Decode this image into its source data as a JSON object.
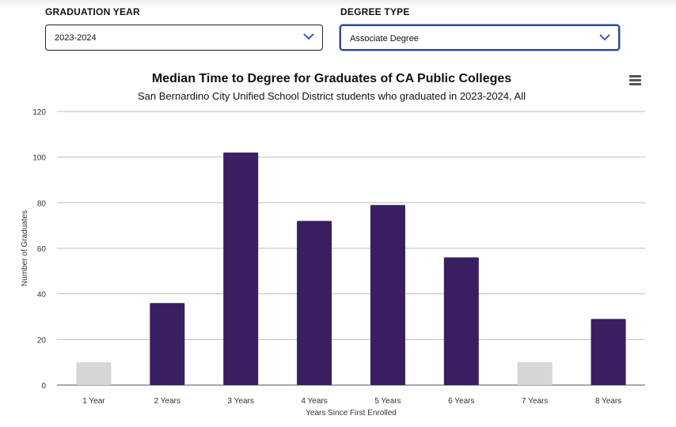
{
  "filters": {
    "year": {
      "label": "GRADUATION YEAR",
      "value": "2023-2024"
    },
    "degree": {
      "label": "DEGREE TYPE",
      "value": "Associate Degree"
    }
  },
  "menu": {
    "icon": "hamburger-menu-icon"
  },
  "colors": {
    "bar": "#3a1e62",
    "bar_suppressed": "#d6d6d6",
    "gridline": "#bfbfbf",
    "accent": "#2f4a8a"
  },
  "chart_data": {
    "type": "bar",
    "title": "Median Time to Degree for Graduates of CA Public Colleges",
    "subtitle": "San Bernardino City Unified School District students who graduated in 2023-2024, All",
    "xlabel": "Years Since First Enrolled",
    "ylabel": "Number of Graduates",
    "ylim": [
      0,
      120
    ],
    "yticks": [
      0,
      20,
      40,
      60,
      80,
      100,
      120
    ],
    "categories": [
      "1 Year",
      "2 Years",
      "3 Years",
      "4 Years",
      "5 Years",
      "6 Years",
      "7 Years",
      "8 Years"
    ],
    "values": [
      10,
      36,
      102,
      72,
      79,
      56,
      10,
      29
    ],
    "suppressed": [
      true,
      false,
      false,
      false,
      false,
      false,
      true,
      false
    ],
    "grid": true,
    "legend": "none"
  }
}
